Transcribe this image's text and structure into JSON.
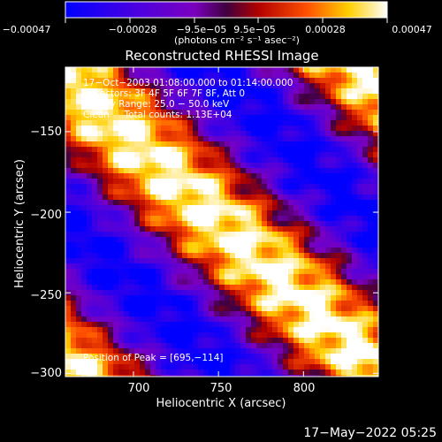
{
  "chart_data": {
    "type": "heatmap",
    "title": "Reconstructed RHESSI Image",
    "xlabel": "Heliocentric X (arcsec)",
    "ylabel": "Heliocentric Y (arcsec)",
    "xlim": [
      660,
      844
    ],
    "ylim": [
      -302,
      -110
    ],
    "xticks": [
      700,
      750,
      800
    ],
    "xtick_labels": [
      "700",
      "750",
      "800"
    ],
    "yticks": [
      -150,
      -200,
      -250,
      -300
    ],
    "ytick_labels": [
      "−150",
      "−200",
      "−250",
      "−300"
    ],
    "colorbar": {
      "range": [
        -0.00047,
        0.00047
      ],
      "ticks": [
        -0.00047,
        -0.00028,
        -9.5e-05,
        9.5e-05,
        0.00028,
        0.00047
      ],
      "tick_labels": [
        "−0.00047",
        "−0.00028",
        "−9.5e−05",
        "9.5e−05",
        "0.00028",
        "0.00047"
      ],
      "units_label": "(photons cm⁻² s⁻¹ asec⁻²)",
      "colors": [
        "#0000ff",
        "#7b00c0",
        "#b20000",
        "#ff5000",
        "#ffd000",
        "#ffffff"
      ]
    },
    "annotations": [
      "17−Oct−2003 01:08:00.000 to 01:14:00.000",
      "Detectors: 3F 4F 5F 6F 7F 8F, Att 0",
      "Energy Range: 25.0 − 50.0 keV",
      "Clean     Total counts: 1.13E+04",
      "Position of Peak = [695,−114]"
    ],
    "peak_position": [
      695,
      -114
    ],
    "pattern": {
      "description_values": "diagonal stripes of alternating emission",
      "stripe_angle_deg": 75,
      "stripe_period_arcsec": 46.8,
      "amplitude_max": 0.00047
    }
  },
  "footer": {
    "timestamp": "17−May−2022 05:25"
  }
}
